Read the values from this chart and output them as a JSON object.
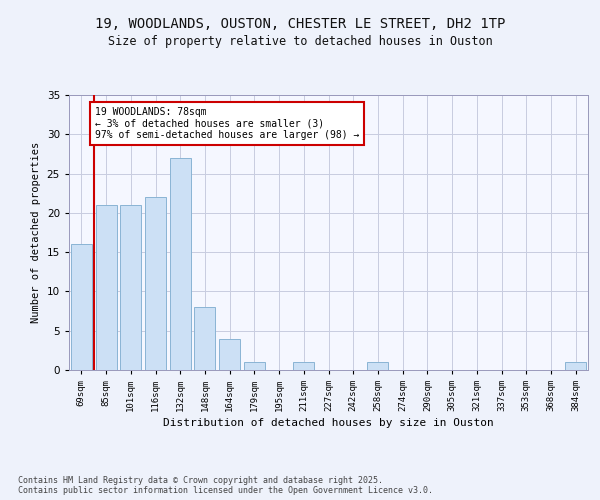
{
  "title_line1": "19, WOODLANDS, OUSTON, CHESTER LE STREET, DH2 1TP",
  "title_line2": "Size of property relative to detached houses in Ouston",
  "xlabel": "Distribution of detached houses by size in Ouston",
  "ylabel": "Number of detached properties",
  "categories": [
    "69sqm",
    "85sqm",
    "101sqm",
    "116sqm",
    "132sqm",
    "148sqm",
    "164sqm",
    "179sqm",
    "195sqm",
    "211sqm",
    "227sqm",
    "242sqm",
    "258sqm",
    "274sqm",
    "290sqm",
    "305sqm",
    "321sqm",
    "337sqm",
    "353sqm",
    "368sqm",
    "384sqm"
  ],
  "values": [
    16,
    21,
    21,
    22,
    27,
    8,
    4,
    1,
    0,
    1,
    0,
    0,
    1,
    0,
    0,
    0,
    0,
    0,
    0,
    0,
    1
  ],
  "bar_color": "#cce0f5",
  "bar_edge_color": "#8ab4d4",
  "annotation_text": "19 WOODLANDS: 78sqm\n← 3% of detached houses are smaller (3)\n97% of semi-detached houses are larger (98) →",
  "annotation_box_color": "#ffffff",
  "annotation_box_edge_color": "#cc0000",
  "vline_color": "#cc0000",
  "ylim": [
    0,
    35
  ],
  "yticks": [
    0,
    5,
    10,
    15,
    20,
    25,
    30,
    35
  ],
  "footer_text": "Contains HM Land Registry data © Crown copyright and database right 2025.\nContains public sector information licensed under the Open Government Licence v3.0.",
  "bg_color": "#eef2fb",
  "plot_bg_color": "#f5f7ff",
  "grid_color": "#c8cce0"
}
